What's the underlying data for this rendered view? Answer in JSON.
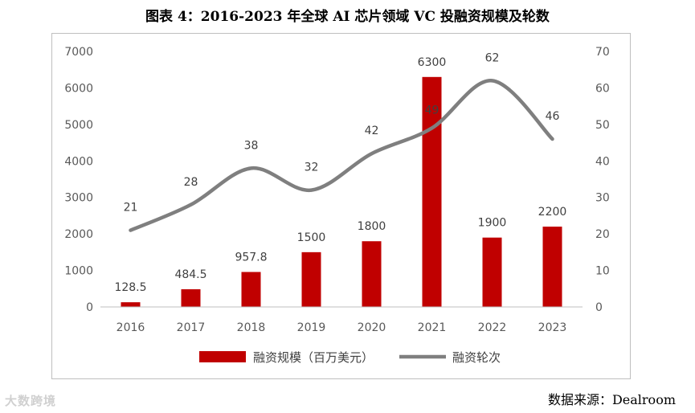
{
  "figure": {
    "title": "图表 4：2016-2023 年全球 AI 芯片领域 VC 投融资规模及轮数",
    "source": "数据来源：Dealroom",
    "watermark": "大数跨境"
  },
  "chart_data": {
    "type": "bar",
    "title": "图表 4：2016-2023 年全球 AI 芯片领域 VC 投融资规模及轮数",
    "categories": [
      "2016",
      "2017",
      "2018",
      "2019",
      "2020",
      "2021",
      "2022",
      "2023"
    ],
    "series": [
      {
        "name": "融资规模（百万美元）",
        "type": "bar",
        "axis": "left",
        "color": "#c00000",
        "values": [
          128.5,
          484.5,
          957.8,
          1500,
          1800,
          6300,
          1900,
          2200
        ],
        "labels": [
          "128.5",
          "484.5",
          "957.8",
          "1500",
          "1800",
          "6300",
          "1900",
          "2200"
        ]
      },
      {
        "name": "融资轮次",
        "type": "line",
        "axis": "right",
        "color": "#7f7f7f",
        "smooth": true,
        "values": [
          21,
          28,
          38,
          32,
          42,
          49,
          62,
          46
        ],
        "labels": [
          "21",
          "28",
          "38",
          "32",
          "42",
          "49",
          "62",
          "46"
        ]
      }
    ],
    "y_left": {
      "min": 0,
      "max": 7000,
      "ticks": [
        "0",
        "1000",
        "2000",
        "3000",
        "4000",
        "5000",
        "6000",
        "7000"
      ]
    },
    "y_right": {
      "min": 0,
      "max": 70,
      "ticks": [
        "0",
        "10",
        "20",
        "30",
        "40",
        "50",
        "60",
        "70"
      ]
    },
    "grid": false,
    "legend_position": "bottom"
  }
}
